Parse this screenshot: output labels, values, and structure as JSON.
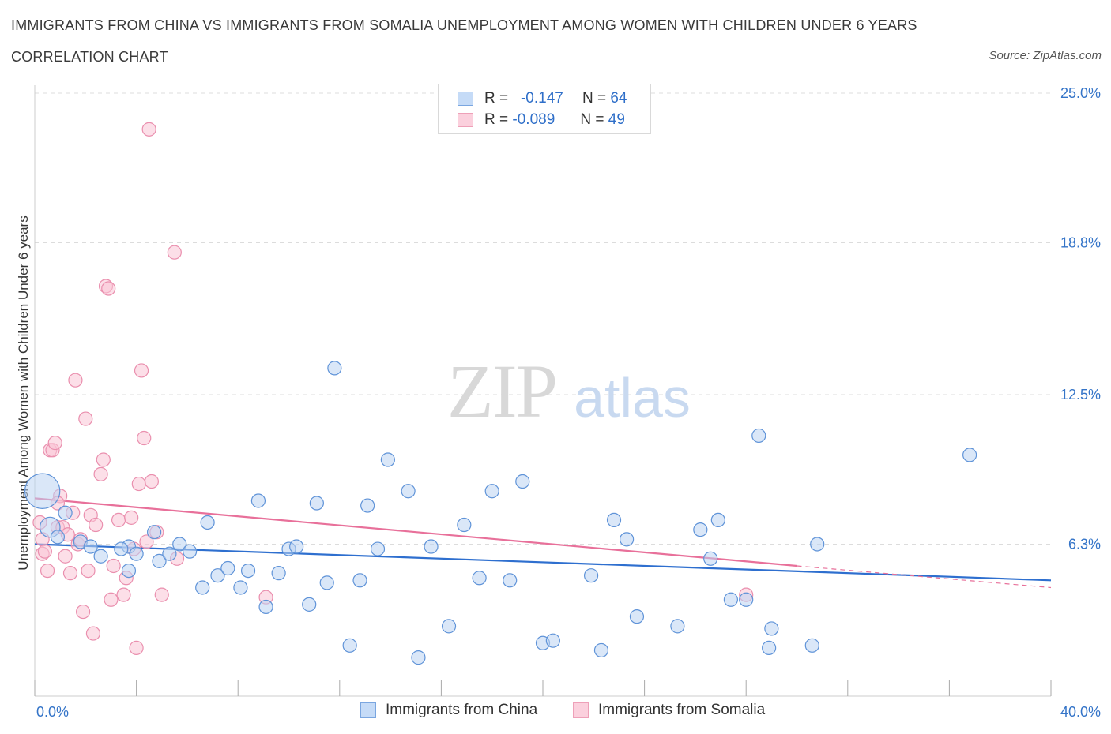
{
  "title": "IMMIGRANTS FROM CHINA VS IMMIGRANTS FROM SOMALIA UNEMPLOYMENT AMONG WOMEN WITH CHILDREN UNDER 6 YEARS",
  "subtitle": "CORRELATION CHART",
  "source": "Source: ZipAtlas.com",
  "watermark": {
    "zip": "ZIP",
    "atlas": "atlas"
  },
  "legend": {
    "r_label": "R =",
    "n_label": "N =",
    "china": {
      "r": "-0.147",
      "n": "64",
      "color": "#a9c8f0"
    },
    "somalia": {
      "r": "-0.089",
      "n": "49",
      "color": "#f6b4c8"
    }
  },
  "bottom_legend": {
    "china": "Immigrants from China",
    "somalia": "Immigrants from Somalia"
  },
  "colors": {
    "china_line": "#2e6fcf",
    "somalia_line": "#e8709a",
    "tick_label": "#3474c8",
    "grid": "#dcdcdc"
  },
  "chart_data": {
    "type": "scatter",
    "title": "IMMIGRANTS FROM CHINA VS IMMIGRANTS FROM SOMALIA UNEMPLOYMENT AMONG WOMEN WITH CHILDREN UNDER 6 YEARS",
    "xlabel": "",
    "ylabel": "Unemployment Among Women with Children Under 6 years",
    "xlim": [
      0,
      40
    ],
    "ylim": [
      0,
      25
    ],
    "x_tick_labels": [
      "0.0%",
      "40.0%"
    ],
    "y_ticks": [
      6.3,
      12.5,
      18.8,
      25.0
    ],
    "y_tick_labels": [
      "6.3%",
      "12.5%",
      "18.8%",
      "25.0%"
    ],
    "grid": "horizontal dashed",
    "series": [
      {
        "name": "Immigrants from China",
        "r": -0.147,
        "n": 64,
        "trend": {
          "x": [
            0,
            40
          ],
          "y": [
            6.3,
            4.8
          ]
        },
        "points": [
          [
            0.3,
            8.5,
            2.6
          ],
          [
            0.6,
            7.0,
            1.5
          ],
          [
            1.2,
            7.6,
            1
          ],
          [
            1.8,
            6.4,
            1
          ],
          [
            2.2,
            6.2,
            1
          ],
          [
            2.6,
            5.8,
            1
          ],
          [
            3.7,
            6.2,
            1
          ],
          [
            3.4,
            6.1,
            1
          ],
          [
            3.7,
            5.2,
            1
          ],
          [
            4.0,
            5.9,
            1
          ],
          [
            4.7,
            6.8,
            1
          ],
          [
            4.9,
            5.6,
            1
          ],
          [
            5.3,
            5.9,
            1
          ],
          [
            5.7,
            6.3,
            1
          ],
          [
            6.1,
            6.0,
            1
          ],
          [
            6.6,
            4.5,
            1
          ],
          [
            6.8,
            7.2,
            1
          ],
          [
            7.2,
            5.0,
            1
          ],
          [
            7.6,
            5.3,
            1
          ],
          [
            8.1,
            4.5,
            1
          ],
          [
            8.4,
            5.2,
            1
          ],
          [
            8.8,
            8.1,
            1
          ],
          [
            9.1,
            3.7,
            1
          ],
          [
            9.6,
            5.1,
            1
          ],
          [
            10.0,
            6.1,
            1
          ],
          [
            10.3,
            6.2,
            1
          ],
          [
            10.8,
            3.8,
            1
          ],
          [
            11.1,
            8.0,
            1
          ],
          [
            11.5,
            4.7,
            1
          ],
          [
            11.8,
            13.6,
            1
          ],
          [
            12.4,
            2.1,
            1
          ],
          [
            12.8,
            4.8,
            1
          ],
          [
            13.1,
            7.9,
            1
          ],
          [
            13.5,
            6.1,
            1
          ],
          [
            13.9,
            9.8,
            1
          ],
          [
            14.7,
            8.5,
            1
          ],
          [
            15.1,
            1.6,
            1
          ],
          [
            15.6,
            6.2,
            1
          ],
          [
            16.3,
            2.9,
            1
          ],
          [
            16.9,
            7.1,
            1
          ],
          [
            17.5,
            4.9,
            1
          ],
          [
            18.0,
            8.5,
            1
          ],
          [
            18.7,
            4.8,
            1
          ],
          [
            19.2,
            8.9,
            1
          ],
          [
            20.0,
            2.2,
            1
          ],
          [
            20.4,
            2.3,
            1
          ],
          [
            21.9,
            5.0,
            1
          ],
          [
            22.3,
            1.9,
            1
          ],
          [
            22.8,
            7.3,
            1
          ],
          [
            23.3,
            6.5,
            1
          ],
          [
            23.7,
            3.3,
            1
          ],
          [
            25.3,
            2.9,
            1
          ],
          [
            26.2,
            6.9,
            1
          ],
          [
            26.6,
            5.7,
            1
          ],
          [
            26.9,
            7.3,
            1
          ],
          [
            27.4,
            4.0,
            1
          ],
          [
            28.0,
            4.0,
            1
          ],
          [
            28.5,
            10.8,
            1
          ],
          [
            28.9,
            2.0,
            1
          ],
          [
            29.0,
            2.8,
            1
          ],
          [
            30.6,
            2.1,
            1
          ],
          [
            30.8,
            6.3,
            1
          ],
          [
            36.8,
            10.0,
            1
          ],
          [
            0.9,
            6.6,
            1
          ]
        ]
      },
      {
        "name": "Immigrants from Somalia",
        "r": -0.089,
        "n": 49,
        "trend": {
          "x": [
            0,
            30
          ],
          "y": [
            8.2,
            5.4
          ]
        },
        "trend_dashed": {
          "x": [
            30,
            40
          ],
          "y": [
            5.4,
            4.5
          ]
        },
        "points": [
          [
            0.2,
            7.2,
            1
          ],
          [
            0.3,
            6.5,
            1
          ],
          [
            0.3,
            5.9,
            1
          ],
          [
            0.4,
            6.0,
            1
          ],
          [
            0.5,
            5.2,
            1
          ],
          [
            0.6,
            10.2,
            1
          ],
          [
            0.7,
            10.2,
            1
          ],
          [
            0.8,
            10.5,
            1
          ],
          [
            0.9,
            7.0,
            1
          ],
          [
            1.0,
            8.3,
            1
          ],
          [
            1.1,
            7.0,
            1
          ],
          [
            1.2,
            5.8,
            1
          ],
          [
            1.3,
            6.7,
            1
          ],
          [
            1.4,
            5.1,
            1
          ],
          [
            1.6,
            13.1,
            1
          ],
          [
            1.7,
            6.3,
            1
          ],
          [
            1.8,
            6.5,
            1
          ],
          [
            1.9,
            3.5,
            1
          ],
          [
            2.0,
            11.5,
            1
          ],
          [
            2.2,
            7.5,
            1
          ],
          [
            2.3,
            2.6,
            1
          ],
          [
            2.4,
            7.1,
            1
          ],
          [
            2.6,
            9.2,
            1
          ],
          [
            2.7,
            9.8,
            1
          ],
          [
            2.8,
            17.0,
            1
          ],
          [
            2.9,
            16.9,
            1
          ],
          [
            3.0,
            4.0,
            1
          ],
          [
            3.1,
            5.4,
            1
          ],
          [
            3.3,
            7.3,
            1
          ],
          [
            3.5,
            4.2,
            1
          ],
          [
            3.6,
            4.9,
            1
          ],
          [
            3.8,
            7.4,
            1
          ],
          [
            4.0,
            2.0,
            1
          ],
          [
            4.1,
            8.8,
            1
          ],
          [
            4.2,
            13.5,
            1
          ],
          [
            4.3,
            10.7,
            1
          ],
          [
            4.4,
            6.4,
            1
          ],
          [
            4.5,
            23.5,
            1
          ],
          [
            4.6,
            8.9,
            1
          ],
          [
            4.8,
            6.8,
            1
          ],
          [
            5.0,
            4.2,
            1
          ],
          [
            5.5,
            18.4,
            1
          ],
          [
            5.6,
            5.7,
            1
          ],
          [
            9.1,
            4.1,
            1
          ],
          [
            28.0,
            4.2,
            1
          ],
          [
            1.5,
            7.6,
            1
          ],
          [
            2.1,
            5.2,
            1
          ],
          [
            0.9,
            8.0,
            1
          ],
          [
            3.9,
            6.1,
            1
          ]
        ]
      }
    ]
  }
}
